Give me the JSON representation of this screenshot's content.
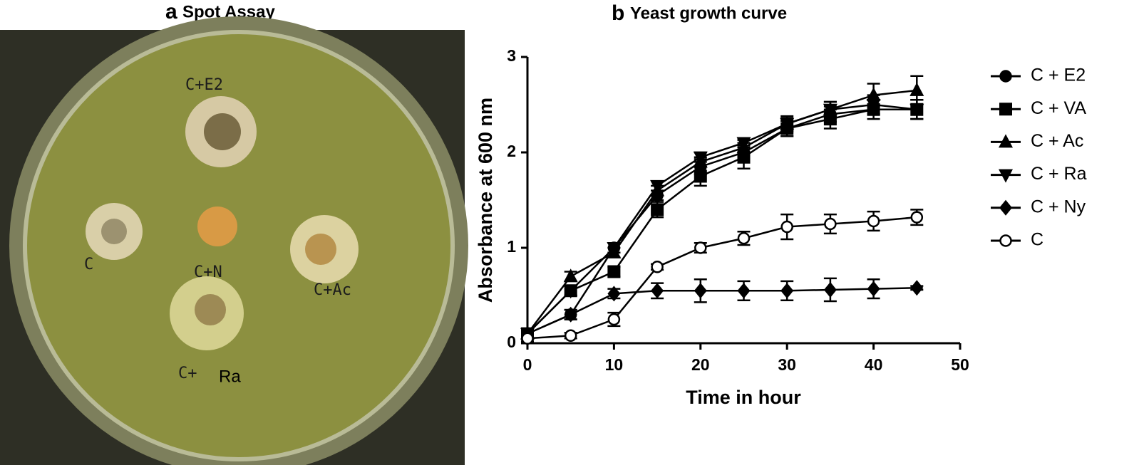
{
  "panels": [
    {
      "label": "a",
      "title": "Spot Assay",
      "plate_labels": [
        "C+E2",
        "C",
        "C+N",
        "C+Ac",
        "C+",
        "Ra"
      ]
    }
  ],
  "chart_data": {
    "type": "line",
    "label": "b",
    "title": "Yeast growth curve",
    "x_label": "Time in hour",
    "y_label": "Absorbance at 600 nm",
    "x": [
      0,
      5,
      10,
      15,
      20,
      25,
      30,
      35,
      40,
      45
    ],
    "xlim": [
      0,
      50
    ],
    "xticks": [
      0,
      10,
      20,
      30,
      40,
      50
    ],
    "ylim": [
      0,
      3
    ],
    "yticks": [
      0,
      1,
      2,
      3
    ],
    "series": [
      {
        "name": "C + E2",
        "color": "#000000",
        "marker": "circle",
        "values": [
          0.1,
          0.3,
          1.0,
          1.55,
          1.85,
          2.0,
          2.25,
          2.4,
          2.45,
          2.45
        ],
        "errors": [
          0.05,
          0.05,
          0.05,
          0.05,
          0.08,
          0.1,
          0.08,
          0.08,
          0.1,
          0.1
        ]
      },
      {
        "name": "C + VA",
        "color": "#000000",
        "marker": "square",
        "values": [
          0.1,
          0.55,
          0.75,
          1.4,
          1.75,
          1.95,
          2.25,
          2.35,
          2.45,
          2.45
        ],
        "errors": [
          0.05,
          0.05,
          0.05,
          0.08,
          0.1,
          0.12,
          0.08,
          0.1,
          0.05,
          0.1
        ]
      },
      {
        "name": "C + Ac",
        "color": "#000000",
        "marker": "triangle-up",
        "values": [
          0.1,
          0.7,
          0.95,
          1.6,
          1.9,
          2.05,
          2.3,
          2.45,
          2.6,
          2.65
        ],
        "errors": [
          0.05,
          0.05,
          0.05,
          0.05,
          0.05,
          0.08,
          0.08,
          0.08,
          0.12,
          0.15
        ]
      },
      {
        "name": "C + Ra",
        "color": "#000000",
        "marker": "triangle-down",
        "values": [
          0.1,
          0.55,
          1.0,
          1.65,
          1.95,
          2.1,
          2.3,
          2.45,
          2.5,
          2.45
        ],
        "errors": [
          0.05,
          0.05,
          0.05,
          0.05,
          0.05,
          0.05,
          0.06,
          0.08,
          0.1,
          0.1
        ]
      },
      {
        "name": "C + Ny",
        "color": "#000000",
        "marker": "diamond",
        "values": [
          0.1,
          0.3,
          0.52,
          0.55,
          0.55,
          0.55,
          0.55,
          0.56,
          0.57,
          0.58
        ],
        "errors": [
          0.05,
          0.05,
          0.05,
          0.08,
          0.12,
          0.1,
          0.1,
          0.12,
          0.1,
          0.02
        ]
      },
      {
        "name": "C",
        "color": "#000000",
        "marker": "open-circle",
        "values": [
          0.05,
          0.08,
          0.25,
          0.8,
          1.0,
          1.1,
          1.22,
          1.25,
          1.28,
          1.32
        ],
        "errors": [
          0.03,
          0.03,
          0.07,
          0.03,
          0.05,
          0.07,
          0.13,
          0.1,
          0.1,
          0.08
        ]
      }
    ]
  }
}
